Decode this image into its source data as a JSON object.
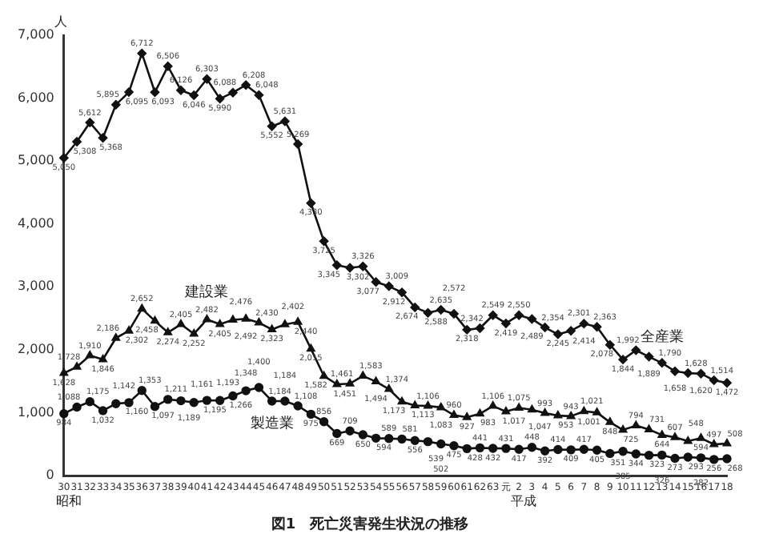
{
  "chart_data": {
    "type": "line",
    "title": "図1　死亡災害発生状況の推移",
    "ylabel": "人",
    "categories": [
      "30",
      "31",
      "32",
      "33",
      "34",
      "35",
      "36",
      "37",
      "38",
      "39",
      "40",
      "41",
      "42",
      "43",
      "44",
      "45",
      "46",
      "47",
      "48",
      "49",
      "50",
      "51",
      "52",
      "53",
      "54",
      "55",
      "56",
      "57",
      "58",
      "59",
      "60",
      "61",
      "62",
      "63",
      "元",
      "2",
      "3",
      "4",
      "5",
      "6",
      "7",
      "8",
      "9",
      "10",
      "11",
      "12",
      "13",
      "14",
      "15",
      "16",
      "17",
      "18"
    ],
    "series": [
      {
        "name": "全産業",
        "color": "#111111",
        "marker": "diamond",
        "values": [
          5050,
          5308,
          5612,
          5368,
          5895,
          6095,
          6712,
          6093,
          6506,
          6126,
          6046,
          6303,
          5990,
          6088,
          6208,
          6048,
          5552,
          5631,
          5269,
          4330,
          3725,
          3345,
          3302,
          3326,
          3077,
          3009,
          2912,
          2674,
          2588,
          2635,
          2572,
          2318,
          2342,
          2549,
          2419,
          2550,
          2489,
          2354,
          2245,
          2301,
          2414,
          2363,
          2078,
          1844,
          1992,
          1889,
          1790,
          1658,
          1628,
          1620,
          1514,
          1472
        ],
        "value_labels": [
          "5,050",
          "5,308",
          "5,612",
          "5,368",
          "5,895",
          "6,095",
          "6,712",
          "6,093",
          "6,506",
          "6,126",
          "6,046",
          "6,303",
          "5,990",
          "6,088",
          "6,208",
          "6,048",
          "5,552",
          "5,631",
          "5,269",
          "4,330",
          "3,725",
          "3,345",
          "3,302",
          "3,326",
          "3,077",
          "3,009",
          "2,912",
          "2,674",
          "2,588",
          "2,635",
          "2,572",
          "2,318",
          "2,342",
          "2,549",
          "2,419",
          "2,550",
          "2,489",
          "2,354",
          "2,245",
          "2,301",
          "2,414",
          "2,363",
          "2,078",
          "1,844",
          "1,992",
          "1,889",
          "1,790",
          "1,658",
          "1,628",
          "1,620",
          "1,514",
          "1,472"
        ]
      },
      {
        "name": "建設業",
        "color": "#111111",
        "marker": "triangle",
        "values": [
          1628,
          1728,
          1910,
          1846,
          2186,
          2302,
          2652,
          2458,
          2274,
          2405,
          2252,
          2482,
          2405,
          2476,
          2492,
          2430,
          2323,
          2402,
          2440,
          2015,
          1582,
          1451,
          1461,
          1583,
          1494,
          1374,
          1173,
          1113,
          1106,
          1083,
          960,
          927,
          983,
          1106,
          1017,
          1075,
          1047,
          993,
          953,
          943,
          1021,
          1001,
          848,
          725,
          794,
          731,
          644,
          607,
          548,
          594,
          497,
          508
        ],
        "value_labels": [
          "1,628",
          "1,728",
          "1,910",
          "1,846",
          "2,186",
          "2,302",
          "2,652",
          "2,458",
          "2,274",
          "2,405",
          "2,252",
          "2,482",
          "2,405",
          "2,476",
          "2,492",
          "2,430",
          "2,323",
          "2,402",
          "2,440",
          "2,015",
          "1,582",
          "1,451",
          "1,461",
          "1,583",
          "1,494",
          "1,374",
          "1,173",
          "1,113",
          "1,106",
          "1,083",
          "960",
          "927",
          "983",
          "1,106",
          "1,017",
          "1,075",
          "1,047",
          "993",
          "953",
          "943",
          "1,021",
          "1,001",
          "848",
          "725",
          "794",
          "731",
          "644",
          "607",
          "548",
          "594",
          "497",
          "508"
        ]
      },
      {
        "name": "製造業",
        "color": "#111111",
        "marker": "circle",
        "values": [
          984,
          1088,
          1175,
          1032,
          1142,
          1160,
          1353,
          1097,
          1211,
          1189,
          1161,
          1195,
          1193,
          1266,
          1348,
          1400,
          1184,
          1184,
          1108,
          975,
          856,
          669,
          709,
          650,
          594,
          589,
          581,
          556,
          539,
          502,
          475,
          428,
          441,
          432,
          431,
          417,
          448,
          392,
          414,
          409,
          417,
          405,
          351,
          385,
          344,
          323,
          326,
          273,
          293,
          282,
          256,
          268
        ],
        "value_labels": [
          "984",
          "1,088",
          "1,175",
          "1,032",
          "1,142",
          "1,160",
          "1,353",
          "1,097",
          "1,211",
          "1,189",
          "1,161",
          "1,195",
          "1,193",
          "1,266",
          "1,348",
          "1,400",
          "1,184",
          "1,184",
          "1,108",
          "975",
          "856",
          "669",
          "709",
          "650",
          "594",
          "589",
          "581",
          "556",
          "539",
          "502",
          "475",
          "428",
          "441",
          "432",
          "431",
          "417",
          "448",
          "392",
          "414",
          "409",
          "417",
          "405",
          "351",
          "385",
          "344",
          "323",
          "326",
          "273",
          "293",
          "282",
          "256",
          "268"
        ]
      }
    ],
    "ylim": [
      0,
      7000
    ],
    "yticks": [
      0,
      {
        "value": 1000,
        "label": "1,000"
      },
      {
        "value": 2000,
        "label": "2,000"
      },
      {
        "value": 3000,
        "label": "3,000"
      },
      {
        "value": 4000,
        "label": "4,000"
      },
      {
        "value": 5000,
        "label": "5,000"
      },
      {
        "value": 6000,
        "label": "6,000"
      },
      {
        "value": 7000,
        "label": "7,000"
      }
    ],
    "annotations": [
      "昭和",
      "平成"
    ],
    "grid": false,
    "legend": false,
    "line_style": "solid"
  }
}
